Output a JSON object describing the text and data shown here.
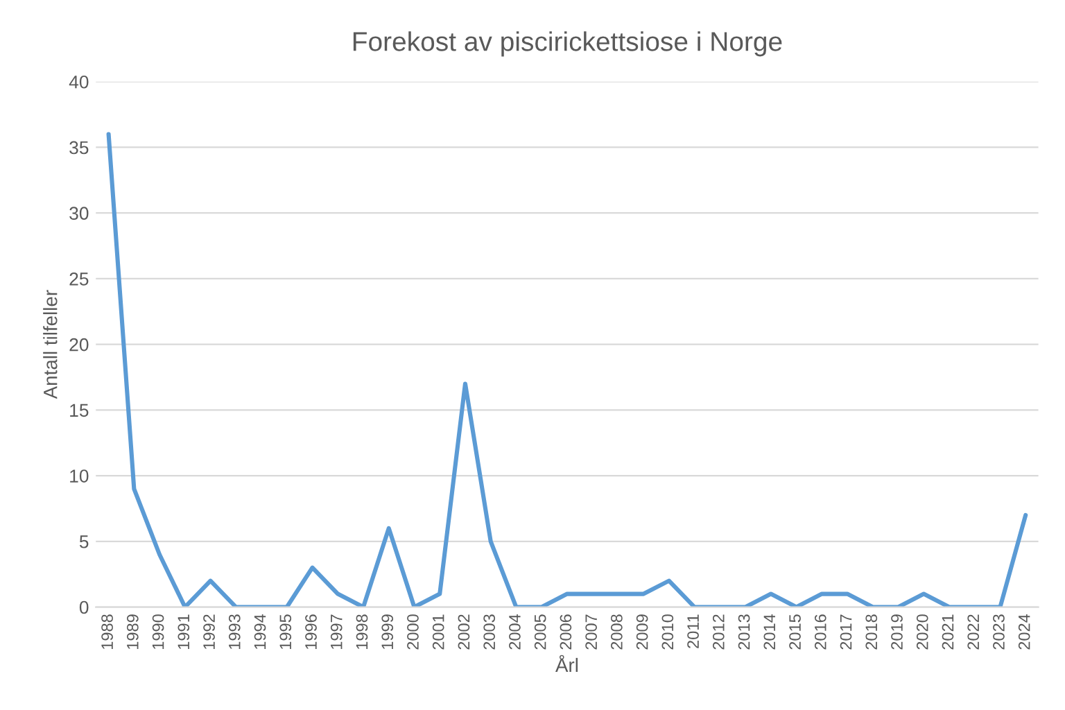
{
  "chart_data": {
    "type": "line",
    "title": "Forekost av piscirickettsiose i Norge",
    "xlabel": "Årl",
    "ylabel": "Antall tilfeller",
    "categories": [
      "1988",
      "1989",
      "1990",
      "1991",
      "1992",
      "1993",
      "1994",
      "1995",
      "1996",
      "1997",
      "1998",
      "1999",
      "2000",
      "2001",
      "2002",
      "2003",
      "2004",
      "2005",
      "2006",
      "2007",
      "2008",
      "2009",
      "2010",
      "2011",
      "2012",
      "2013",
      "2014",
      "2015",
      "2016",
      "2017",
      "2018",
      "2019",
      "2020",
      "2021",
      "2022",
      "2023",
      "2024"
    ],
    "series": [
      {
        "color": "#5b9bd5",
        "values": [
          36,
          9,
          4,
          0,
          2,
          0,
          0,
          0,
          3,
          1,
          0,
          6,
          0,
          1,
          17,
          5,
          0,
          0,
          1,
          1,
          1,
          1,
          2,
          0,
          0,
          0,
          1,
          0,
          1,
          1,
          0,
          0,
          1,
          0,
          0,
          0,
          7
        ]
      }
    ],
    "ylim": [
      0,
      40
    ],
    "yticks": [
      0,
      5,
      10,
      15,
      20,
      25,
      30,
      35,
      40
    ],
    "grid": "y",
    "legend": false,
    "marker": "none",
    "line_style": "solid"
  }
}
